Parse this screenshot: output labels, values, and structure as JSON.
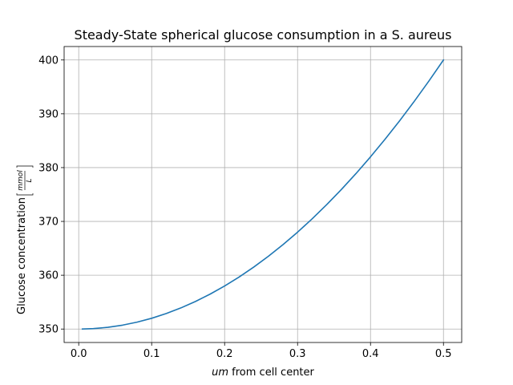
{
  "chart_data": {
    "type": "line",
    "title": "Steady-State spherical glucose consumption in a S. aureus",
    "xlabel_italic": "um",
    "xlabel_rest": " from cell center",
    "ylabel_text": "Glucose concentration",
    "ylabel_fraction_numerator": "mmol",
    "ylabel_fraction_denominator": "L",
    "xlim": [
      -0.02,
      0.525
    ],
    "ylim": [
      347.5,
      402.5
    ],
    "xticks": [
      0.0,
      0.1,
      0.2,
      0.3,
      0.4,
      0.5
    ],
    "xtick_labels": [
      "0.0",
      "0.1",
      "0.2",
      "0.3",
      "0.4",
      "0.5"
    ],
    "yticks": [
      350,
      360,
      370,
      380,
      390,
      400
    ],
    "ytick_labels": [
      "350",
      "360",
      "370",
      "380",
      "390",
      "400"
    ],
    "grid": true,
    "line_color": "#1f77b4",
    "series": [
      {
        "x": [
          0.005,
          0.02,
          0.04,
          0.06,
          0.08,
          0.1,
          0.12,
          0.14,
          0.16,
          0.18,
          0.2,
          0.22,
          0.24,
          0.26,
          0.28,
          0.3,
          0.32,
          0.34,
          0.36,
          0.38,
          0.4,
          0.42,
          0.44,
          0.46,
          0.48,
          0.5
        ],
        "y": [
          350.0,
          350.08,
          350.32,
          350.72,
          351.28,
          352.0,
          352.88,
          353.92,
          355.12,
          356.48,
          358.0,
          359.68,
          361.52,
          363.52,
          365.68,
          368.0,
          370.48,
          373.12,
          375.92,
          378.88,
          382.0,
          385.28,
          388.72,
          392.32,
          396.08,
          400.0
        ]
      }
    ]
  }
}
